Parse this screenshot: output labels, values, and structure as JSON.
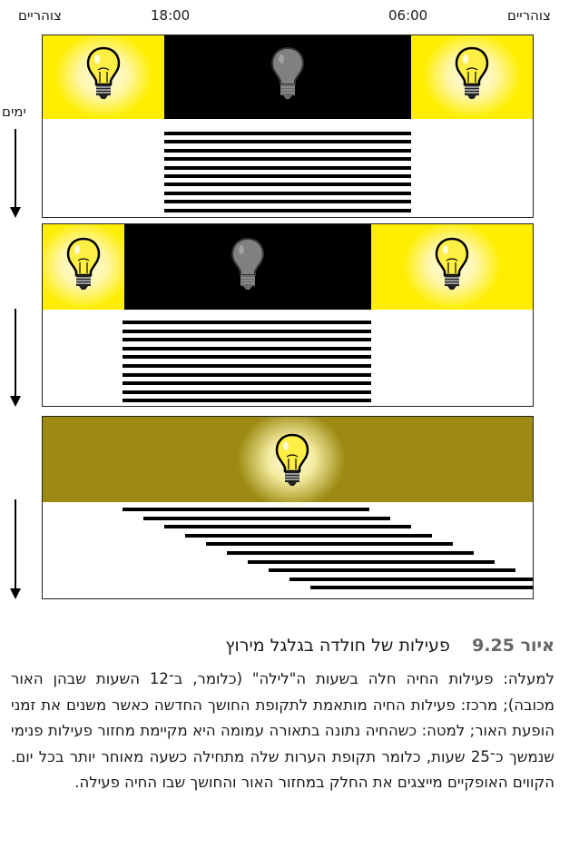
{
  "axis": {
    "noon_right": "צוהריים",
    "noon_left": "צוהריים",
    "time_6": "06:00",
    "time_18": "18:00",
    "days": "ימים"
  },
  "panels": [
    {
      "label": "top",
      "light_cycle": "yellow-black-yellow",
      "activity_rows": 10,
      "activity_shift_per_day": 0
    },
    {
      "label": "middle",
      "light_cycle": "yellow-black-yellow",
      "activity_rows": 10,
      "activity_shift_per_day": 0
    },
    {
      "label": "bottom",
      "light_cycle": "constant-dim",
      "activity_rows": 10,
      "activity_shift_per_day": 1
    }
  ],
  "colors": {
    "light": "#ffee00",
    "dark": "#000000",
    "dim": "#9c8a12",
    "caption_number": "#666666"
  },
  "caption": {
    "number": "איור 9.25",
    "title": "פעילות של חולדה בגלגל מירוץ",
    "body": "למעלה: פעילות החיה חלה בשעות ה\"לילה\" (כלומר, ב־12 השעות שבהן האור מכובה); מרכז: פעילות החיה מותאמת לתקופת החושך החדשה כאשר משנים את זמני הופעת האור; למטה: כשהחיה נתונה בתאורה עמומה היא מקיימת מחזור פעילות פנימי שנמשך כ־25 שעות, כלומר תקופת הערות שלה מתחילה כשעה מאוחר יותר בכל יום. הקווים האופקיים מייצגים את החלק במחזור האור והחושך שבו החיה פעילה."
  }
}
